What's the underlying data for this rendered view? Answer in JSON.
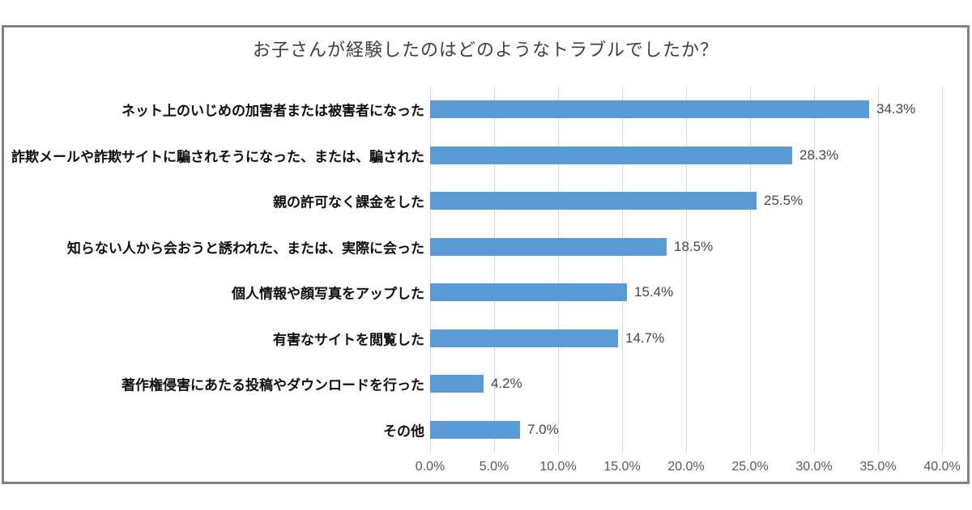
{
  "chart_data": {
    "type": "bar",
    "orientation": "horizontal",
    "title": "お子さんが経験したのはどのようなトラブルでしたか？",
    "categories": [
      "ネット上のいじめの加害者または被害者になった",
      "詐欺メールや詐欺サイトに騙されそうになった、または、騙された",
      "親の許可なく課金をした",
      "知らない人から会おうと誘われた、または、実際に会った",
      "個人情報や顔写真をアップした",
      "有害なサイトを閲覧した",
      "著作権侵害にあたる投稿やダウンロードを行った",
      "その他"
    ],
    "values": [
      34.3,
      28.3,
      25.5,
      18.5,
      15.4,
      14.7,
      4.2,
      7.0
    ],
    "value_labels": [
      "34.3%",
      "28.3%",
      "25.5%",
      "18.5%",
      "15.4%",
      "14.7%",
      "4.2%",
      "7.0%"
    ],
    "x_ticks": [
      "0.0%",
      "5.0%",
      "10.0%",
      "15.0%",
      "20.0%",
      "25.0%",
      "30.0%",
      "35.0%",
      "40.0%"
    ],
    "xlim": [
      0,
      40
    ],
    "xlabel": "",
    "ylabel": "",
    "grid": "vertical-gridlines-every-5-percent",
    "legend": "none",
    "colors": {
      "bar_fill": "#5B9BD5",
      "gridline": "#D9D9D9",
      "frame_border": "#828282",
      "title_text": "#3F3F3F",
      "category_text": "#0F0F0F",
      "value_text": "#484848",
      "axis_tick_text": "#595959",
      "background": "#FFFFFF"
    }
  }
}
